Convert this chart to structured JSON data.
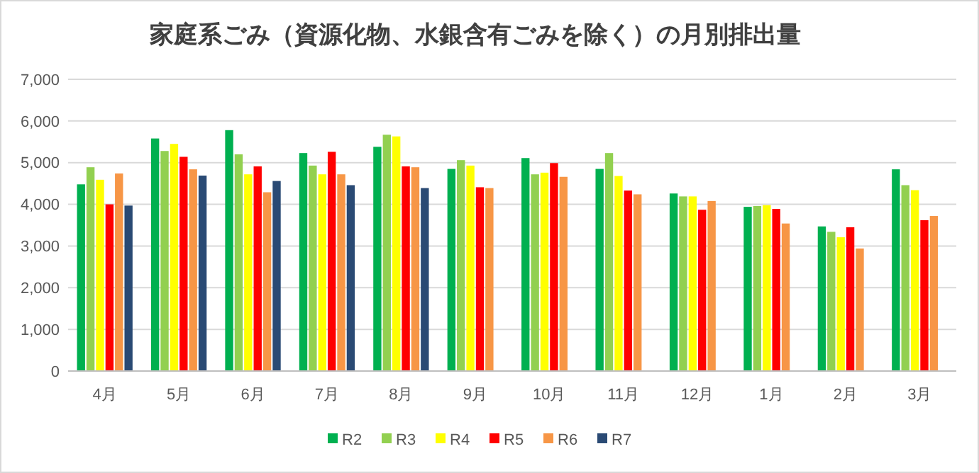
{
  "chart_data": {
    "type": "bar",
    "title": "家庭系ごみ（資源化物、水銀含有ごみを除く）の月別排出量",
    "categories": [
      "4月",
      "5月",
      "6月",
      "7月",
      "8月",
      "9月",
      "10月",
      "11月",
      "12月",
      "1月",
      "2月",
      "3月"
    ],
    "series": [
      {
        "name": "R2",
        "color": "#00b050",
        "values": [
          4480,
          5580,
          5780,
          5230,
          5380,
          4850,
          5110,
          4850,
          4260,
          3940,
          3470,
          4840
        ]
      },
      {
        "name": "R3",
        "color": "#92d050",
        "values": [
          4890,
          5280,
          5200,
          4930,
          5670,
          5060,
          4720,
          5230,
          4190,
          3960,
          3340,
          4460
        ]
      },
      {
        "name": "R4",
        "color": "#ffff00",
        "values": [
          4590,
          5450,
          4720,
          4720,
          5630,
          4930,
          4760,
          4680,
          4190,
          3980,
          3210,
          4340
        ]
      },
      {
        "name": "R5",
        "color": "#ff0000",
        "values": [
          4000,
          5140,
          4910,
          5260,
          4910,
          4410,
          4990,
          4330,
          3870,
          3890,
          3450,
          3620
        ]
      },
      {
        "name": "R6",
        "color": "#f79646",
        "values": [
          4740,
          4840,
          4290,
          4720,
          4890,
          4390,
          4660,
          4240,
          4080,
          3540,
          2940,
          3720
        ]
      },
      {
        "name": "R7",
        "color": "#2a4a74",
        "values": [
          3970,
          4690,
          4560,
          4460,
          4390,
          null,
          null,
          null,
          null,
          null,
          null,
          null
        ]
      }
    ],
    "ylim": [
      0,
      7000
    ],
    "yticks": [
      {
        "value": 0,
        "label": "0"
      },
      {
        "value": 1000,
        "label": "1,000"
      },
      {
        "value": 2000,
        "label": "2,000"
      },
      {
        "value": 3000,
        "label": "3,000"
      },
      {
        "value": 4000,
        "label": "4,000"
      },
      {
        "value": 5000,
        "label": "5,000"
      },
      {
        "value": 6000,
        "label": "6,000"
      },
      {
        "value": 7000,
        "label": "7,000"
      }
    ],
    "grid": "y",
    "legend": "bottom"
  }
}
